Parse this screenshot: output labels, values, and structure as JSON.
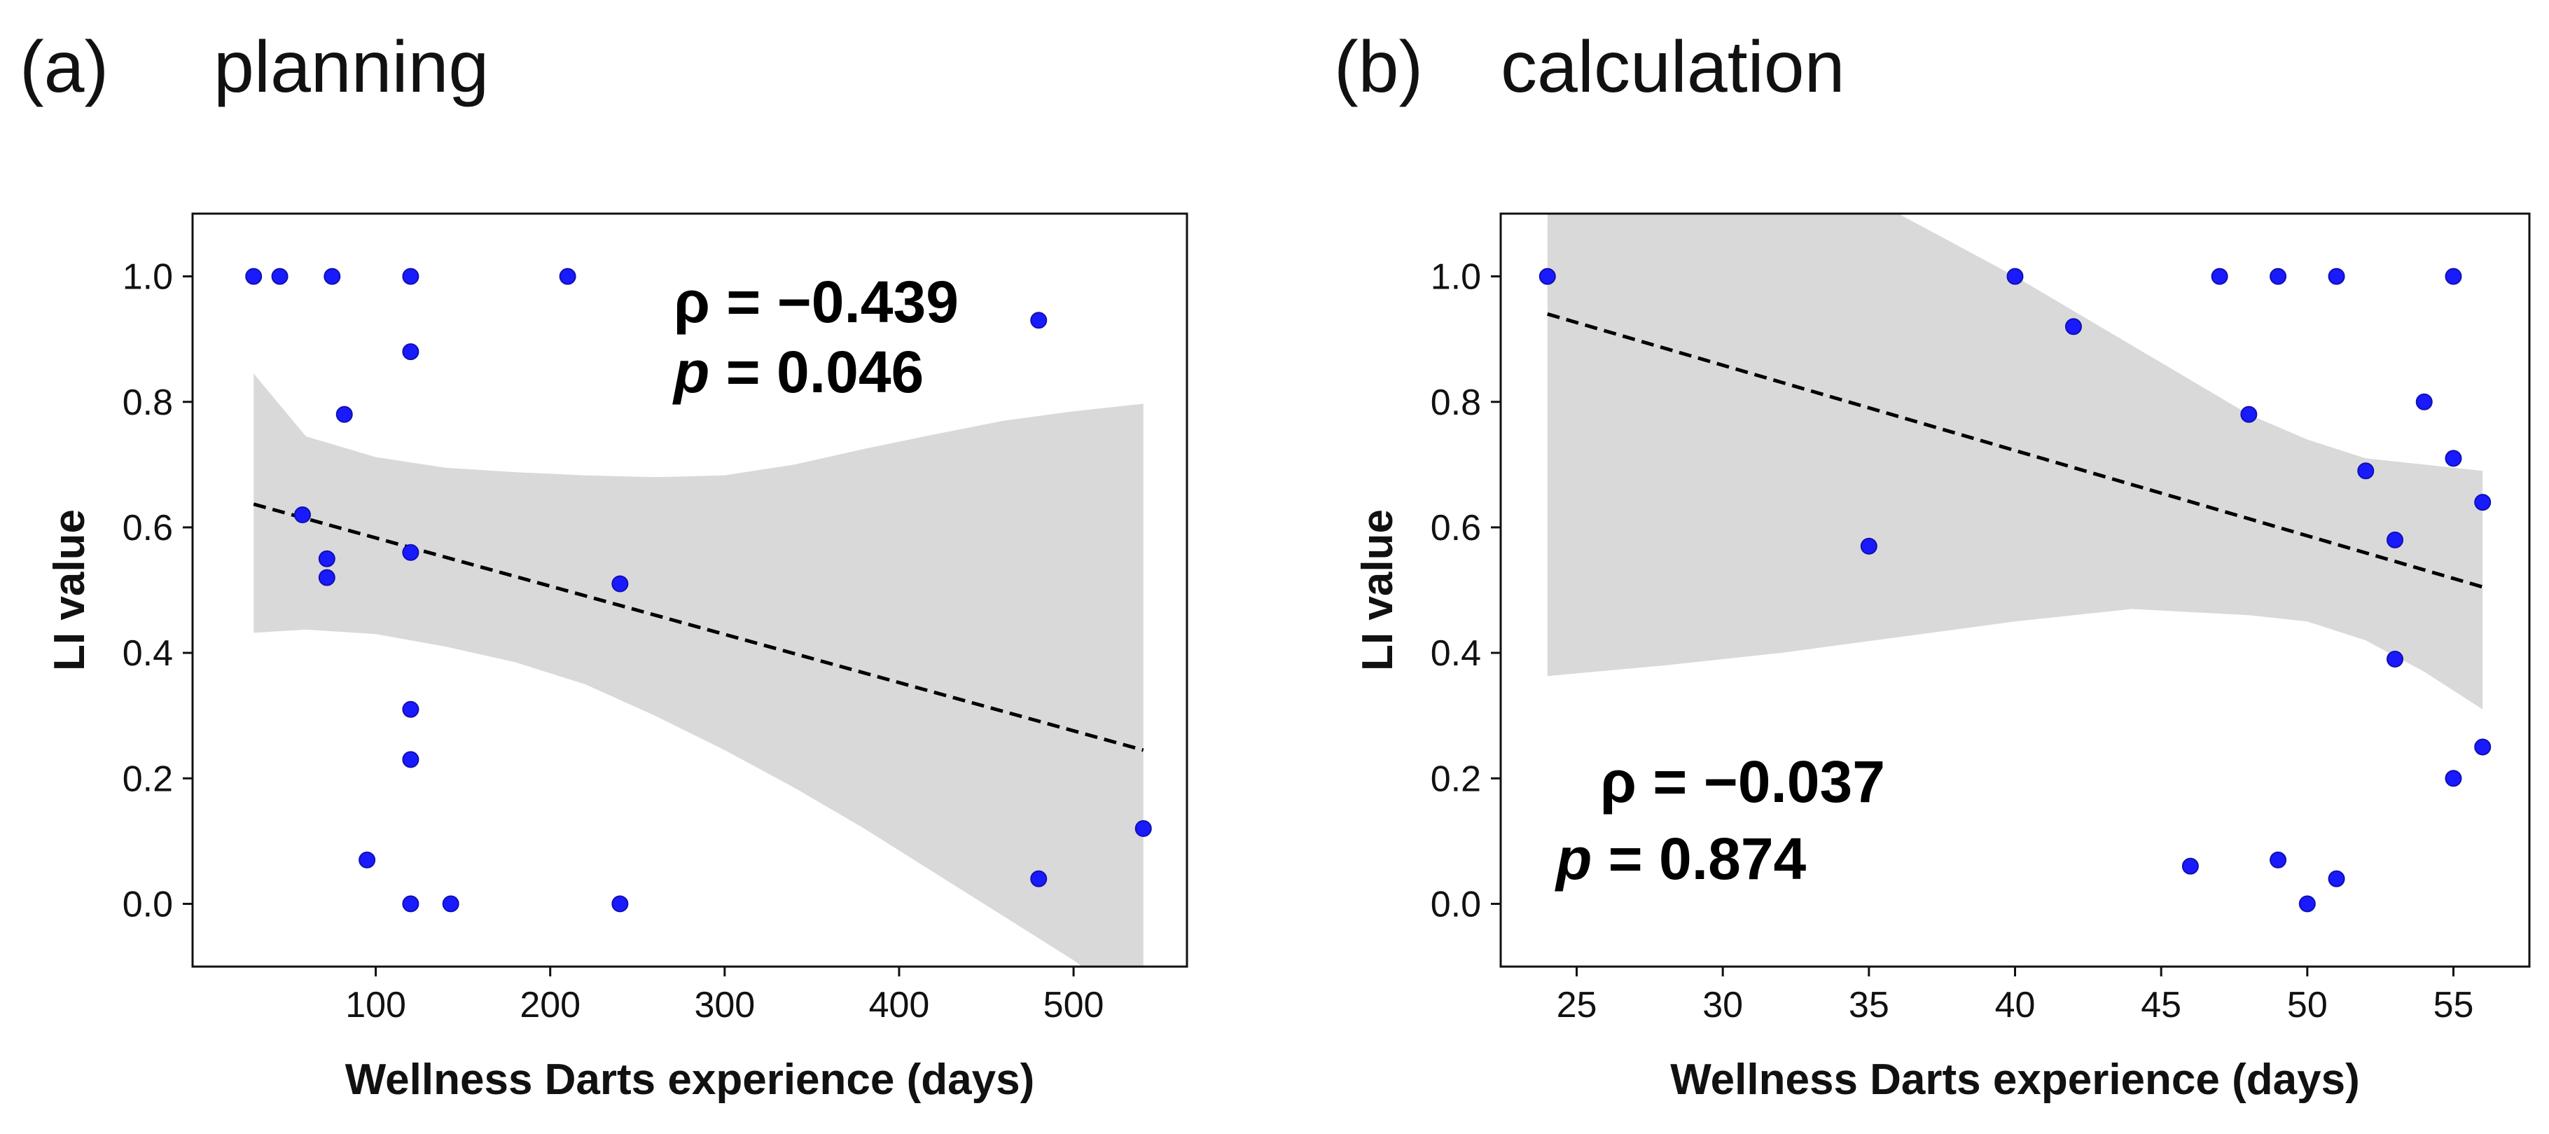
{
  "chart_data": [
    {
      "type": "scatter",
      "panel_letter": "(a)",
      "title": "planning",
      "xlabel": "Wellness Darts experience (days)",
      "ylabel": "LI value",
      "xlim": [
        -5,
        565
      ],
      "ylim": [
        -0.1,
        1.1
      ],
      "xticks": [
        100,
        200,
        300,
        400,
        500
      ],
      "yticks": [
        0.0,
        0.2,
        0.4,
        0.6,
        0.8,
        1.0
      ],
      "ytick_labels": [
        "0.0",
        "0.2",
        "0.4",
        "0.6",
        "0.8",
        "1.0"
      ],
      "points": [
        [
          30,
          1.0
        ],
        [
          45,
          1.0
        ],
        [
          75,
          1.0
        ],
        [
          120,
          1.0
        ],
        [
          210,
          1.0
        ],
        [
          480,
          0.93
        ],
        [
          120,
          0.88
        ],
        [
          82,
          0.78
        ],
        [
          58,
          0.62
        ],
        [
          72,
          0.55
        ],
        [
          72,
          0.52
        ],
        [
          120,
          0.56
        ],
        [
          240,
          0.51
        ],
        [
          120,
          0.31
        ],
        [
          120,
          0.23
        ],
        [
          95,
          0.07
        ],
        [
          120,
          0.0
        ],
        [
          143,
          0.0
        ],
        [
          240,
          0.0
        ],
        [
          480,
          0.04
        ],
        [
          540,
          0.12
        ]
      ],
      "regression": {
        "x": [
          30,
          540
        ],
        "y": [
          0.637,
          0.245
        ]
      },
      "confidence_band": {
        "x": [
          30,
          60,
          100,
          140,
          180,
          220,
          260,
          300,
          340,
          380,
          420,
          460,
          500,
          540
        ],
        "upper": [
          0.845,
          0.745,
          0.712,
          0.695,
          0.688,
          0.683,
          0.68,
          0.683,
          0.7,
          0.725,
          0.748,
          0.77,
          0.785,
          0.797
        ],
        "lower": [
          0.432,
          0.437,
          0.43,
          0.41,
          0.385,
          0.35,
          0.3,
          0.245,
          0.185,
          0.12,
          0.05,
          -0.02,
          -0.09,
          -0.17
        ]
      },
      "annotation": {
        "rho_label": "ρ = −0.439",
        "p_italic": "p",
        "p_rest": " = 0.046"
      },
      "point_color": "#1a1aff",
      "band_color": "#d9d9d9"
    },
    {
      "type": "scatter",
      "panel_letter": "(b)",
      "title": "calculation",
      "xlabel": "Wellness Darts experience (days)",
      "ylabel": "LI value",
      "xlim": [
        22.4,
        57.6
      ],
      "ylim": [
        -0.1,
        1.1
      ],
      "xticks": [
        25,
        30,
        35,
        40,
        45,
        50,
        55
      ],
      "yticks": [
        0.0,
        0.2,
        0.4,
        0.6,
        0.8,
        1.0
      ],
      "ytick_labels": [
        "0.0",
        "0.2",
        "0.4",
        "0.6",
        "0.8",
        "1.0"
      ],
      "points": [
        [
          24,
          1.0
        ],
        [
          35,
          0.57
        ],
        [
          40,
          1.0
        ],
        [
          42,
          0.92
        ],
        [
          46,
          0.06
        ],
        [
          47,
          1.0
        ],
        [
          48,
          0.78
        ],
        [
          49,
          1.0
        ],
        [
          49,
          0.07
        ],
        [
          50,
          0.0
        ],
        [
          51,
          1.0
        ],
        [
          51,
          0.04
        ],
        [
          52,
          0.69
        ],
        [
          53,
          0.58
        ],
        [
          53,
          0.39
        ],
        [
          54,
          0.8
        ],
        [
          55,
          1.0
        ],
        [
          55,
          0.71
        ],
        [
          55,
          0.2
        ],
        [
          56,
          0.64
        ],
        [
          56,
          0.25
        ]
      ],
      "regression": {
        "x": [
          24,
          56
        ],
        "y": [
          0.94,
          0.505
        ]
      },
      "confidence_band": {
        "x": [
          24,
          28,
          32,
          36,
          40,
          44,
          48,
          50,
          52,
          54,
          56
        ],
        "upper": [
          1.1,
          1.1,
          1.1,
          1.1,
          1.0,
          0.89,
          0.78,
          0.74,
          0.71,
          0.7,
          0.69
        ],
        "lower": [
          0.363,
          0.38,
          0.4,
          0.425,
          0.45,
          0.47,
          0.46,
          0.45,
          0.42,
          0.37,
          0.31
        ]
      },
      "annotation": {
        "rho_label": "ρ = −0.037",
        "p_italic": "p",
        "p_rest": " = 0.874"
      },
      "point_color": "#1a1aff",
      "band_color": "#d9d9d9"
    }
  ]
}
